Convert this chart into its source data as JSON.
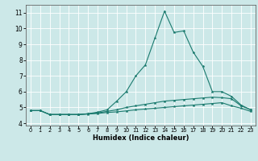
{
  "xlabel": "Humidex (Indice chaleur)",
  "x_values": [
    0,
    1,
    2,
    3,
    4,
    5,
    6,
    7,
    8,
    9,
    10,
    11,
    12,
    13,
    14,
    15,
    16,
    17,
    18,
    19,
    20,
    21,
    22,
    23
  ],
  "line1": [
    4.8,
    4.8,
    4.55,
    4.55,
    4.55,
    4.55,
    4.58,
    4.62,
    4.68,
    4.72,
    4.78,
    4.85,
    4.9,
    4.95,
    5.0,
    5.05,
    5.1,
    5.15,
    5.2,
    5.25,
    5.3,
    5.1,
    4.95,
    4.75
  ],
  "line2": [
    4.8,
    4.8,
    4.55,
    4.55,
    4.55,
    4.55,
    4.6,
    4.65,
    4.75,
    4.85,
    5.0,
    5.1,
    5.2,
    5.3,
    5.4,
    5.45,
    5.5,
    5.55,
    5.6,
    5.65,
    5.62,
    5.55,
    5.1,
    4.85
  ],
  "line3_main": [
    4.8,
    4.8,
    4.55,
    4.55,
    4.55,
    4.55,
    4.6,
    4.7,
    4.85,
    5.4,
    6.0,
    7.0,
    7.7,
    9.4,
    11.1,
    9.75,
    9.85,
    8.5,
    7.6,
    6.0,
    6.0,
    5.7,
    5.15,
    4.85
  ],
  "bg_color": "#cce8e8",
  "line_color": "#1a7a6e",
  "grid_color": "#ffffff",
  "ylim": [
    3.85,
    11.5
  ],
  "yticks": [
    4,
    5,
    6,
    7,
    8,
    9,
    10,
    11
  ],
  "xlim": [
    -0.5,
    23.5
  ]
}
